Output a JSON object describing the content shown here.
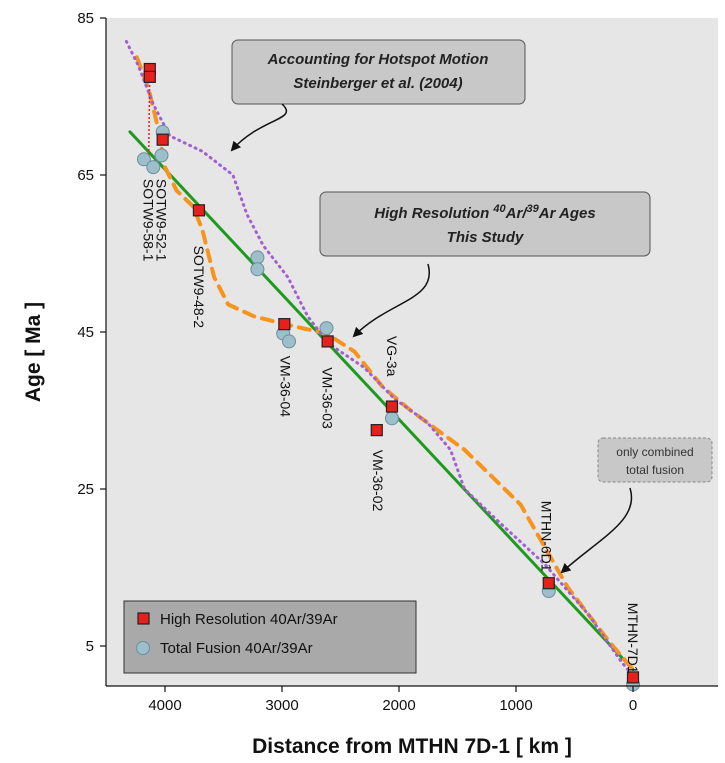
{
  "chart_data": {
    "type": "scatter",
    "xlabel": "Distance from MTHN 7D-1 [ km ]",
    "ylabel": "Age [ Ma ]",
    "xlim": [
      4500,
      -700
    ],
    "ylim": [
      0,
      85
    ],
    "xticks": [
      4000,
      3000,
      2000,
      1000,
      0
    ],
    "yticks": [
      5,
      25,
      45,
      65,
      85
    ],
    "grid": false,
    "legend_position": "bottom-left",
    "legend": [
      {
        "name": "High Resolution 40Ar/39Ar",
        "marker": "square",
        "color": "#e8201c"
      },
      {
        "name": "Total Fusion 40Ar/39Ar",
        "marker": "circle",
        "color": "#9dbfcb"
      }
    ],
    "series": [
      {
        "name": "High Resolution 40Ar/39Ar",
        "marker": "square",
        "color": "#e8201c",
        "points": [
          {
            "x": 4130,
            "y": 78.5
          },
          {
            "x": 4130,
            "y": 77.5
          },
          {
            "x": 4020,
            "y": 69.5
          },
          {
            "x": 3710,
            "y": 60.5
          },
          {
            "x": 2980,
            "y": 46.0
          },
          {
            "x": 2610,
            "y": 43.8
          },
          {
            "x": 2190,
            "y": 32.5
          },
          {
            "x": 2060,
            "y": 35.5
          },
          {
            "x": 720,
            "y": 13.0
          },
          {
            "x": 0,
            "y": 1.0
          }
        ]
      },
      {
        "name": "Total Fusion 40Ar/39Ar",
        "marker": "circle",
        "color": "#9dbfcb",
        "points": [
          {
            "x": 4180,
            "y": 67.0
          },
          {
            "x": 4100,
            "y": 66.0
          },
          {
            "x": 4020,
            "y": 70.5
          },
          {
            "x": 4030,
            "y": 67.5
          },
          {
            "x": 3210,
            "y": 54.5
          },
          {
            "x": 3210,
            "y": 53.0
          },
          {
            "x": 2990,
            "y": 44.8
          },
          {
            "x": 2940,
            "y": 43.8
          },
          {
            "x": 2620,
            "y": 45.5
          },
          {
            "x": 2060,
            "y": 34.0
          },
          {
            "x": 720,
            "y": 12.0
          },
          {
            "x": 0,
            "y": 0.1
          }
        ]
      }
    ],
    "lines": [
      {
        "name": "linear-fit",
        "color": "#1e9a1e",
        "style": "solid",
        "points": [
          {
            "x": 4300,
            "y": 70.5
          },
          {
            "x": 0,
            "y": 2.0
          }
        ]
      },
      {
        "name": "high-resolution-trend",
        "color": "#f7941d",
        "style": "dashed",
        "points": [
          {
            "x": 4240,
            "y": 80
          },
          {
            "x": 4140,
            "y": 76
          },
          {
            "x": 4060,
            "y": 71
          },
          {
            "x": 4000,
            "y": 66
          },
          {
            "x": 3900,
            "y": 63
          },
          {
            "x": 3760,
            "y": 61
          },
          {
            "x": 3680,
            "y": 58
          },
          {
            "x": 3580,
            "y": 52
          },
          {
            "x": 3460,
            "y": 48.5
          },
          {
            "x": 3240,
            "y": 47
          },
          {
            "x": 2980,
            "y": 46
          },
          {
            "x": 2620,
            "y": 44.8
          },
          {
            "x": 2380,
            "y": 42.5
          },
          {
            "x": 2140,
            "y": 38
          },
          {
            "x": 1900,
            "y": 35
          },
          {
            "x": 1440,
            "y": 30
          },
          {
            "x": 960,
            "y": 23
          },
          {
            "x": 560,
            "y": 12.5
          },
          {
            "x": 200,
            "y": 5.5
          },
          {
            "x": 0,
            "y": 2
          }
        ]
      },
      {
        "name": "hotspot-motion-trend",
        "color": "#a25fd1",
        "style": "dotted",
        "points": [
          {
            "x": 4330,
            "y": 82
          },
          {
            "x": 4230,
            "y": 79
          },
          {
            "x": 4100,
            "y": 74
          },
          {
            "x": 3960,
            "y": 70
          },
          {
            "x": 3680,
            "y": 68
          },
          {
            "x": 3420,
            "y": 65
          },
          {
            "x": 3300,
            "y": 60
          },
          {
            "x": 3160,
            "y": 56
          },
          {
            "x": 2950,
            "y": 52
          },
          {
            "x": 2780,
            "y": 47
          },
          {
            "x": 2600,
            "y": 43.5
          },
          {
            "x": 2300,
            "y": 40.5
          },
          {
            "x": 2040,
            "y": 36.5
          },
          {
            "x": 1760,
            "y": 33.5
          },
          {
            "x": 1560,
            "y": 30
          },
          {
            "x": 1440,
            "y": 25
          },
          {
            "x": 1160,
            "y": 21
          },
          {
            "x": 760,
            "y": 15.5
          },
          {
            "x": 380,
            "y": 9
          },
          {
            "x": 100,
            "y": 3
          },
          {
            "x": 0,
            "y": 1.2
          }
        ]
      }
    ],
    "sample_labels": [
      {
        "text": "SOTW9-58-1",
        "x": 4140,
        "y": 64.5
      },
      {
        "text": "SOTW9-52-1",
        "x": 4030,
        "y": 64.5
      },
      {
        "text": "SOTW9-48-2",
        "x": 3710,
        "y": 56.0
      },
      {
        "text": "VM-36-04",
        "x": 2970,
        "y": 42.0
      },
      {
        "text": "VM-36-03",
        "x": 2610,
        "y": 40.5
      },
      {
        "text": "VM-36-02",
        "x": 2180,
        "y": 30.0
      },
      {
        "text": "VG-3a",
        "x": 2060,
        "y": 44.5
      },
      {
        "text": "MTHN-6D1",
        "x": 740,
        "y": 23.5
      },
      {
        "text": "MTHN-7D1",
        "x": 0,
        "y": 10.5
      }
    ],
    "annotations": [
      {
        "lines": [
          "Accounting for Hotspot Motion",
          "Steinberger et al. (2004)"
        ]
      },
      {
        "lines": [
          "High Resolution ",
          "40",
          "Ar/",
          "39",
          "Ar Ages",
          "This Study"
        ]
      },
      {
        "lines": [
          "only combined",
          "total fusion"
        ]
      }
    ]
  }
}
